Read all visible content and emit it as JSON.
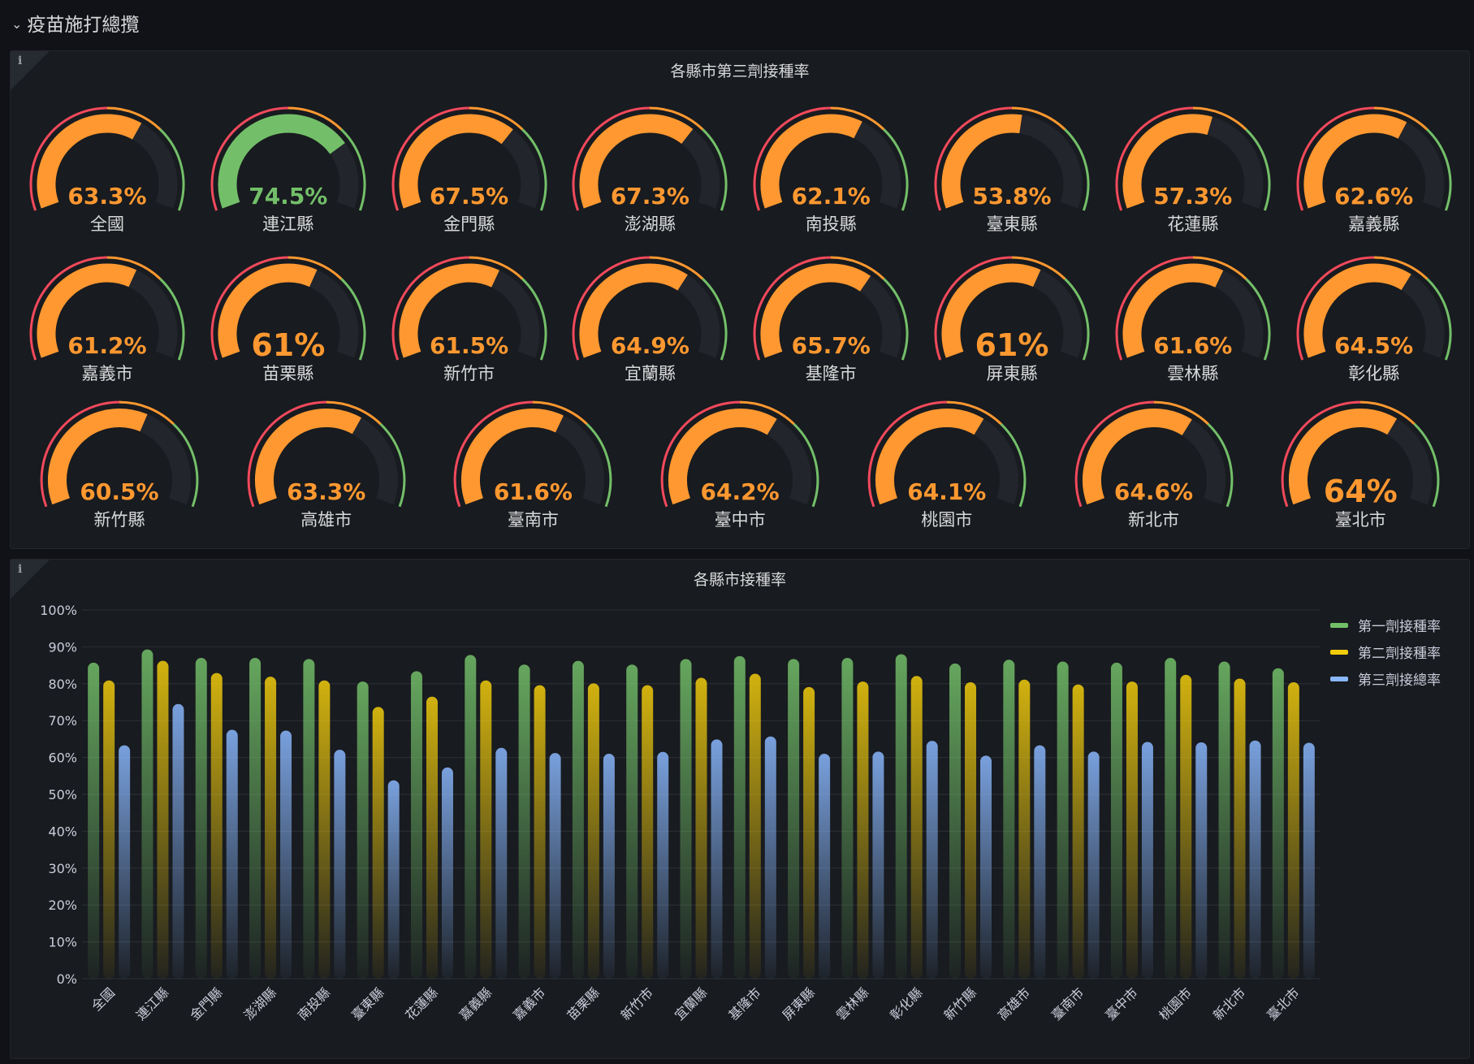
{
  "row": {
    "title": "疫苗施打總攬",
    "icon": "chevron-down-icon"
  },
  "colors": {
    "red": "#f2495c",
    "orange": "#ff9830",
    "green": "#73bf69",
    "yellow": "#f2cc0c",
    "blue": "#8ab8ff",
    "track": "#22252b"
  },
  "gauge_panel": {
    "title": "各縣市第三劑接種率",
    "info_icon": "i",
    "thresholds": [
      {
        "from": 0,
        "color": "#f2495c"
      },
      {
        "from": 50,
        "color": "#ff9830"
      },
      {
        "from": 70,
        "color": "#73bf69"
      }
    ],
    "gauges": [
      {
        "label": "全國",
        "value": 63.3,
        "text": "63.3%"
      },
      {
        "label": "連江縣",
        "value": 74.5,
        "text": "74.5%"
      },
      {
        "label": "金門縣",
        "value": 67.5,
        "text": "67.5%"
      },
      {
        "label": "澎湖縣",
        "value": 67.3,
        "text": "67.3%"
      },
      {
        "label": "南投縣",
        "value": 62.1,
        "text": "62.1%"
      },
      {
        "label": "臺東縣",
        "value": 53.8,
        "text": "53.8%"
      },
      {
        "label": "花蓮縣",
        "value": 57.3,
        "text": "57.3%"
      },
      {
        "label": "嘉義縣",
        "value": 62.6,
        "text": "62.6%"
      },
      {
        "label": "嘉義市",
        "value": 61.2,
        "text": "61.2%"
      },
      {
        "label": "苗栗縣",
        "value": 61,
        "text": "61%"
      },
      {
        "label": "新竹市",
        "value": 61.5,
        "text": "61.5%"
      },
      {
        "label": "宜蘭縣",
        "value": 64.9,
        "text": "64.9%"
      },
      {
        "label": "基隆市",
        "value": 65.7,
        "text": "65.7%"
      },
      {
        "label": "屏東縣",
        "value": 61,
        "text": "61%"
      },
      {
        "label": "雲林縣",
        "value": 61.6,
        "text": "61.6%"
      },
      {
        "label": "彰化縣",
        "value": 64.5,
        "text": "64.5%"
      },
      {
        "label": "新竹縣",
        "value": 60.5,
        "text": "60.5%"
      },
      {
        "label": "高雄市",
        "value": 63.3,
        "text": "63.3%"
      },
      {
        "label": "臺南市",
        "value": 61.6,
        "text": "61.6%"
      },
      {
        "label": "臺中市",
        "value": 64.2,
        "text": "64.2%"
      },
      {
        "label": "桃園市",
        "value": 64.1,
        "text": "64.1%"
      },
      {
        "label": "新北市",
        "value": 64.6,
        "text": "64.6%"
      },
      {
        "label": "臺北市",
        "value": 64,
        "text": "64%"
      }
    ]
  },
  "bar_panel": {
    "title": "各縣市接種率",
    "info_icon": "i"
  },
  "chart_data": {
    "type": "bar",
    "title": "各縣市接種率",
    "ylim": [
      0,
      100
    ],
    "yticks": [
      "0%",
      "10%",
      "20%",
      "30%",
      "40%",
      "50%",
      "60%",
      "70%",
      "80%",
      "90%",
      "100%"
    ],
    "grid": true,
    "legend_placement": "right",
    "categories": [
      "全國",
      "連江縣",
      "金門縣",
      "澎湖縣",
      "南投縣",
      "臺東縣",
      "花蓮縣",
      "嘉義縣",
      "嘉義市",
      "苗栗縣",
      "新竹市",
      "宜蘭縣",
      "基隆市",
      "屏東縣",
      "雲林縣",
      "彰化縣",
      "新竹縣",
      "高雄市",
      "臺南市",
      "臺中市",
      "桃園市",
      "新北市",
      "臺北市"
    ],
    "series": [
      {
        "name": "第一劑接種率",
        "color": "#73bf69",
        "values": [
          85.7,
          89.3,
          87.0,
          87.0,
          86.7,
          80.6,
          83.4,
          87.8,
          85.2,
          86.2,
          85.2,
          86.7,
          87.5,
          86.7,
          87.0,
          88.0,
          85.5,
          86.5,
          86.0,
          85.7,
          87.0,
          86.0,
          84.2
        ]
      },
      {
        "name": "第二劑接種率",
        "color": "#f2cc0c",
        "values": [
          80.9,
          86.2,
          82.9,
          81.9,
          80.9,
          73.7,
          76.5,
          80.9,
          79.6,
          80.1,
          79.6,
          81.6,
          82.7,
          79.1,
          80.6,
          82.1,
          80.4,
          81.1,
          79.8,
          80.6,
          82.4,
          81.4,
          80.4
        ]
      },
      {
        "name": "第三劑接總率",
        "color": "#8ab8ff",
        "values": [
          63.3,
          74.5,
          67.5,
          67.3,
          62.1,
          53.8,
          57.3,
          62.6,
          61.2,
          61,
          61.5,
          64.9,
          65.7,
          61,
          61.6,
          64.5,
          60.5,
          63.3,
          61.6,
          64.2,
          64.1,
          64.6,
          64
        ]
      }
    ]
  }
}
